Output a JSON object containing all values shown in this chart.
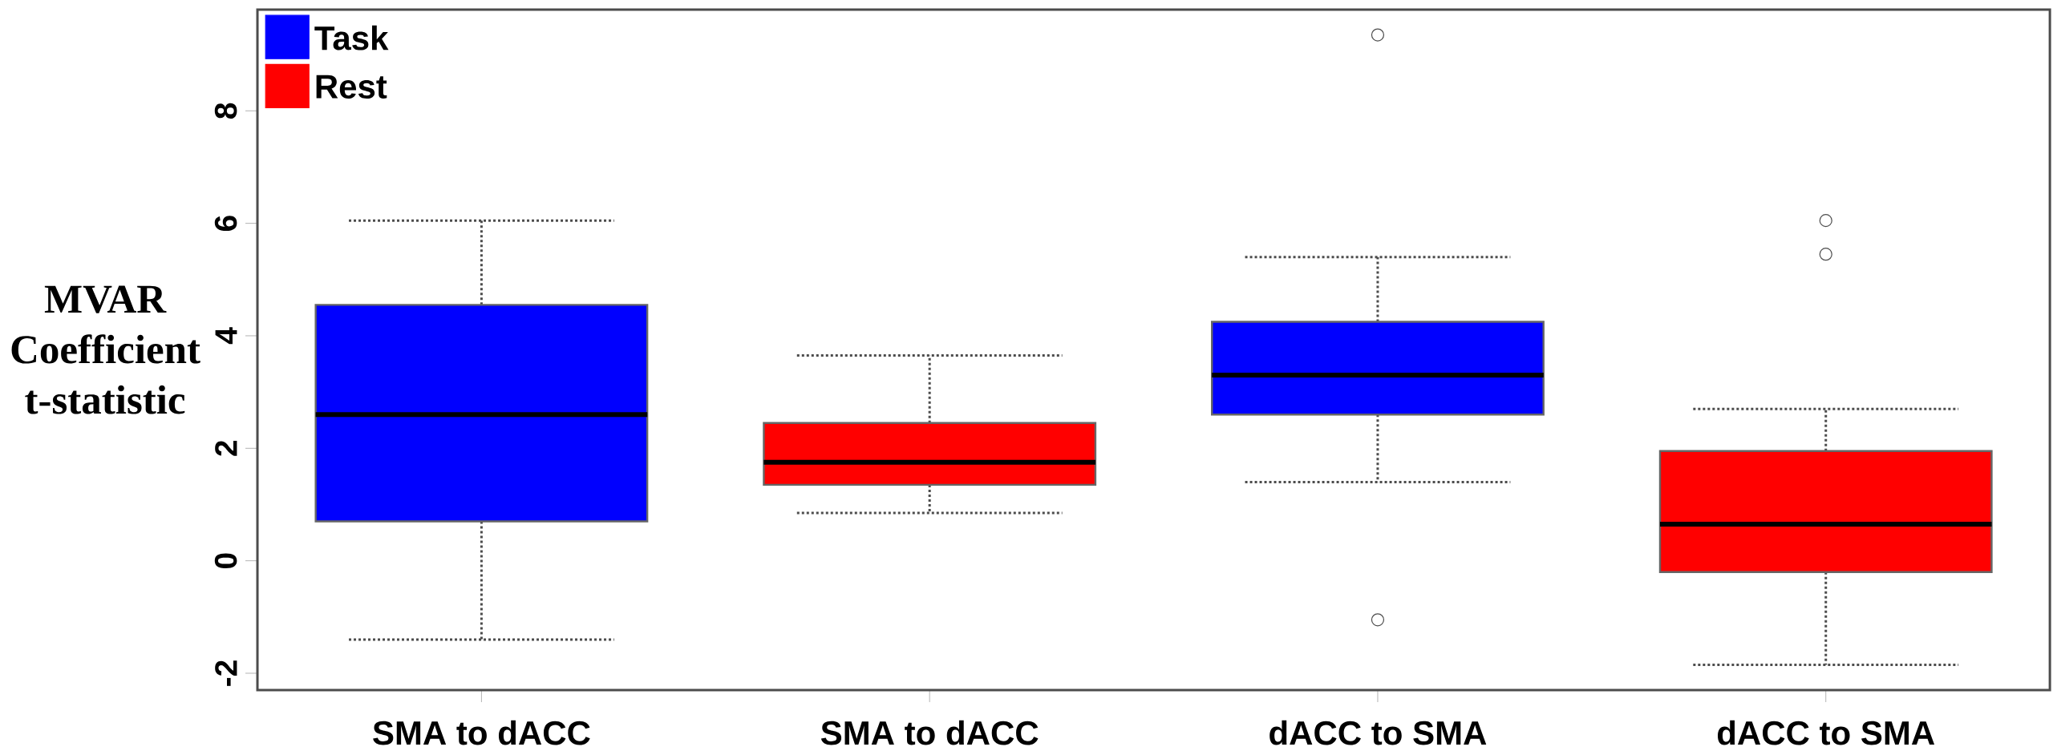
{
  "chart_data": {
    "type": "box",
    "ylabel": "MVAR Coefficient t-statistic",
    "categories": [
      "SMA to dACC",
      "SMA to dACC",
      "dACC to SMA",
      "dACC to SMA"
    ],
    "ylim": [
      -2.3,
      9.8
    ],
    "yticks": [
      -2,
      0,
      2,
      4,
      6,
      8
    ],
    "legend": "top left",
    "grid": false,
    "series": [
      {
        "name": "Task",
        "color": "#0000ff",
        "boxes": [
          {
            "low": -1.4,
            "q1": 0.7,
            "median": 2.6,
            "q3": 4.55,
            "high": 6.05
          },
          null,
          {
            "low": 1.4,
            "q1": 2.6,
            "median": 3.3,
            "q3": 4.25,
            "high": 5.4,
            "outliers": [
              9.35,
              -1.05
            ]
          },
          null
        ]
      },
      {
        "name": "Rest",
        "color": "#ff0000",
        "boxes": [
          null,
          {
            "low": 0.85,
            "q1": 1.35,
            "median": 1.75,
            "q3": 2.45,
            "high": 3.65
          },
          null,
          {
            "low": -1.85,
            "q1": -0.2,
            "median": 0.65,
            "q3": 1.95,
            "high": 2.7,
            "outliers": [
              6.05,
              5.45
            ]
          }
        ]
      }
    ]
  }
}
